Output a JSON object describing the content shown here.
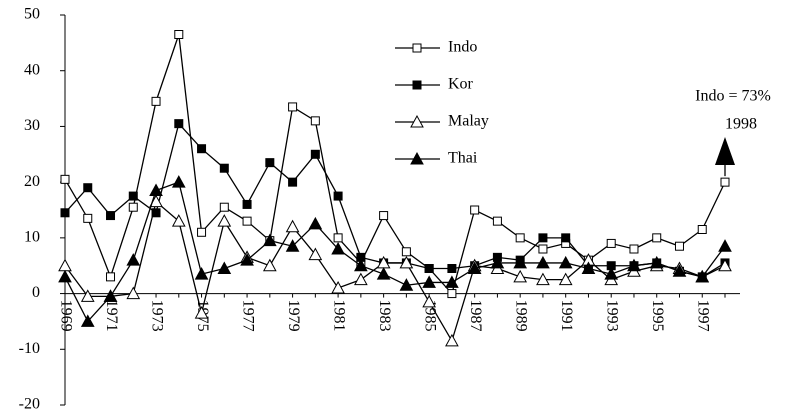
{
  "chart_data": {
    "type": "line",
    "categories": [
      "1969",
      null,
      "1971",
      null,
      "1973",
      null,
      "1975",
      null,
      "1977",
      null,
      "1979",
      null,
      "1981",
      null,
      "1983",
      null,
      "1985",
      null,
      "1987",
      null,
      "1989",
      null,
      "1991",
      null,
      "1993",
      null,
      "1995",
      null,
      "1997",
      null
    ],
    "series": [
      {
        "name": "Indo",
        "color": "#000000",
        "marker": "square-open",
        "values": [
          20.5,
          13.5,
          3,
          15.5,
          34.5,
          46.5,
          11,
          15.5,
          13,
          9.5,
          33.5,
          31,
          10,
          5.5,
          14,
          7.5,
          4.5,
          0,
          15,
          13,
          10,
          8,
          9,
          6,
          9,
          8,
          10,
          8.5,
          11.5,
          20
        ]
      },
      {
        "name": "Kor",
        "color": "#000000",
        "marker": "square-filled",
        "values": [
          14.5,
          19,
          14,
          17.5,
          14.5,
          30.5,
          26,
          22.5,
          16,
          23.5,
          20,
          25,
          17.5,
          6.5,
          5.5,
          5.5,
          4.5,
          4.5,
          5,
          6.5,
          6,
          10,
          10,
          5,
          5,
          5,
          5.5,
          4,
          3,
          5.5
        ]
      },
      {
        "name": "Malay",
        "color": "#000000",
        "marker": "triangle-open",
        "values": [
          5,
          -0.5,
          -0.5,
          0,
          16.5,
          13,
          -3.5,
          13,
          6.5,
          5,
          12,
          7,
          1,
          2.5,
          5.5,
          5.5,
          -1.5,
          -8.5,
          5,
          4.5,
          3,
          2.5,
          2.5,
          6,
          2.5,
          4,
          5,
          4.5,
          3,
          5
        ]
      },
      {
        "name": "Thai",
        "color": "#000000",
        "marker": "triangle-filled",
        "values": [
          3,
          -5,
          -0.5,
          6,
          18.5,
          20,
          3.5,
          4.5,
          6,
          9.5,
          8.5,
          12.5,
          8,
          5,
          3.5,
          1.5,
          2,
          2,
          4.5,
          5.5,
          5.5,
          5.5,
          5.5,
          4.5,
          3.5,
          5,
          5.5,
          4,
          3,
          8.5
        ]
      }
    ],
    "ylim": [
      -20,
      50
    ],
    "yticks": [
      -20,
      -10,
      0,
      10,
      20,
      30,
      40,
      50
    ],
    "grid": false,
    "legend": "top",
    "annotations": [
      "Indo = 73%",
      "1998"
    ]
  }
}
